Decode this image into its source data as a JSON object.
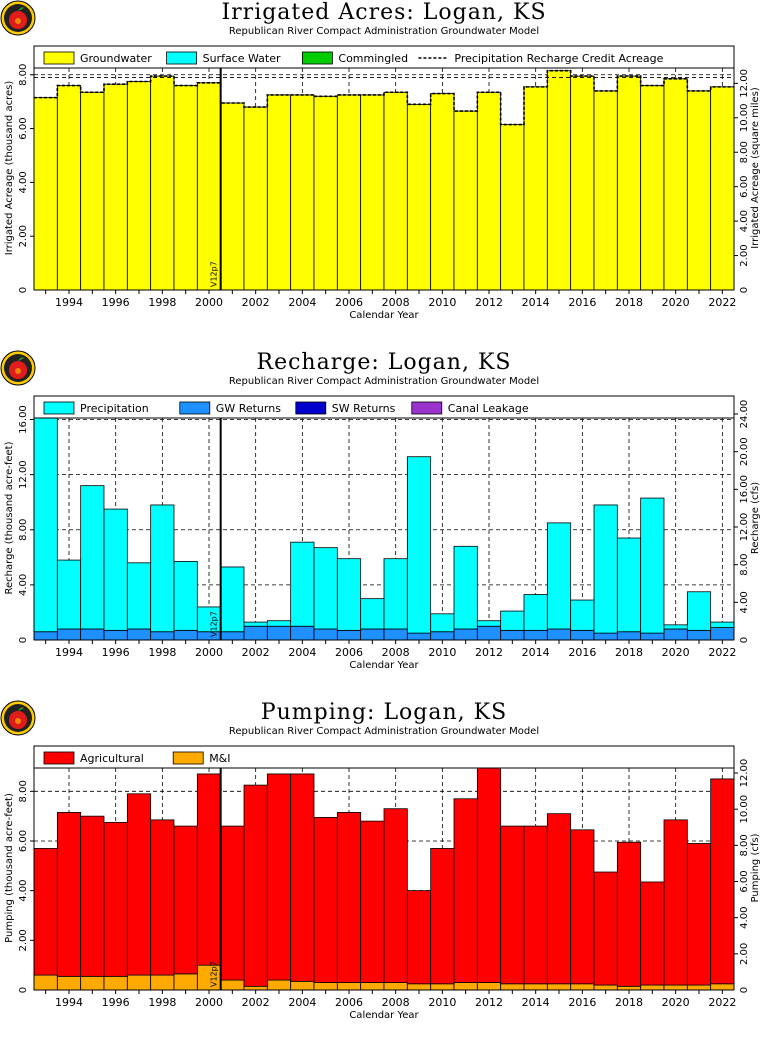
{
  "panels": [
    {
      "title": "Irrigated Acres: Logan, KS",
      "subtitle": "Republican River Compact Administration Groundwater Model",
      "ylabel": "Irrigated Acreage (thousand acres)",
      "y2label": "Irrigated Acreage (square miles)",
      "xlabel": "Calendar Year",
      "vline_label": "V12p7",
      "legend": [
        {
          "name": "Groundwater",
          "color": "#ffff00",
          "kind": "box"
        },
        {
          "name": "Surface Water",
          "color": "#00ffff",
          "kind": "box"
        },
        {
          "name": "Commingled",
          "color": "#00cc00",
          "kind": "box"
        },
        {
          "name": "Precipitation Recharge Credit Acreage",
          "color": "#000000",
          "kind": "dash"
        }
      ]
    },
    {
      "title": "Recharge: Logan, KS",
      "subtitle": "Republican River Compact Administration Groundwater Model",
      "ylabel": "Recharge (thousand acre-feet)",
      "y2label": "Recharge (cfs)",
      "xlabel": "Calendar Year",
      "vline_label": "V12p7",
      "legend": [
        {
          "name": "Precipitation",
          "color": "#00ffff",
          "kind": "box"
        },
        {
          "name": "GW Returns",
          "color": "#1e90ff",
          "kind": "box"
        },
        {
          "name": "SW Returns",
          "color": "#0000cc",
          "kind": "box"
        },
        {
          "name": "Canal Leakage",
          "color": "#9933cc",
          "kind": "box"
        }
      ]
    },
    {
      "title": "Pumping: Logan, KS",
      "subtitle": "Republican River Compact Administration Groundwater Model",
      "ylabel": "Pumping (thousand acre-feet)",
      "y2label": "Pumping (cfs)",
      "xlabel": "Calendar Year",
      "vline_label": "V12p7",
      "legend": [
        {
          "name": "Agricultural",
          "color": "#ff0000",
          "kind": "box"
        },
        {
          "name": "M&I",
          "color": "#ffaa00",
          "kind": "box"
        }
      ]
    }
  ],
  "chart_data": [
    {
      "type": "bar",
      "title": "Irrigated Acres: Logan, KS",
      "subtitle": "Republican River Compact Administration Groundwater Model",
      "xlabel": "Calendar Year",
      "ylabel": "Irrigated Acreage (thousand acres)",
      "y2label": "Irrigated Acreage (square miles)",
      "categories": [
        1993,
        1994,
        1995,
        1996,
        1997,
        1998,
        1999,
        2000,
        2001,
        2002,
        2003,
        2004,
        2005,
        2006,
        2007,
        2008,
        2009,
        2010,
        2011,
        2012,
        2013,
        2014,
        2015,
        2016,
        2017,
        2018,
        2019,
        2020,
        2021,
        2022
      ],
      "xticks": [
        1994,
        1996,
        1998,
        2000,
        2002,
        2004,
        2006,
        2008,
        2010,
        2012,
        2014,
        2016,
        2018,
        2020,
        2022
      ],
      "ylim": [
        0,
        8.4
      ],
      "yticks": [
        2,
        4,
        6,
        8
      ],
      "y2lim": [
        0,
        13.125
      ],
      "y2ticks": [
        2,
        4,
        6,
        8,
        10,
        12
      ],
      "stacked": true,
      "series": [
        {
          "name": "Groundwater",
          "color": "#ffff00",
          "values": [
            7.15,
            7.6,
            7.35,
            7.65,
            7.75,
            7.95,
            7.6,
            7.7,
            6.95,
            6.8,
            7.25,
            7.25,
            7.2,
            7.25,
            7.25,
            7.35,
            6.9,
            7.3,
            6.65,
            7.35,
            6.15,
            7.55,
            8.15,
            7.95,
            7.4,
            7.95,
            7.6,
            7.85,
            7.4,
            7.55
          ]
        },
        {
          "name": "Surface Water",
          "color": "#00ffff",
          "values": [
            0,
            0,
            0,
            0,
            0,
            0,
            0,
            0,
            0,
            0,
            0,
            0,
            0,
            0,
            0,
            0,
            0,
            0,
            0,
            0,
            0,
            0,
            0,
            0,
            0,
            0,
            0,
            0,
            0,
            0
          ]
        },
        {
          "name": "Commingled",
          "color": "#00cc00",
          "values": [
            0,
            0,
            0,
            0,
            0,
            0,
            0,
            0,
            0,
            0,
            0,
            0,
            0,
            0,
            0,
            0,
            0,
            0,
            0,
            0,
            0,
            0,
            0,
            0,
            0,
            0,
            0,
            0,
            0,
            0
          ]
        }
      ],
      "line": {
        "name": "Precipitation Recharge Credit Acreage",
        "values": [
          7.15,
          7.6,
          7.35,
          7.65,
          7.75,
          7.95,
          7.6,
          7.7,
          6.95,
          6.8,
          7.25,
          7.25,
          7.2,
          7.25,
          7.25,
          7.35,
          6.9,
          7.3,
          6.65,
          7.35,
          6.15,
          7.55,
          8.15,
          7.95,
          7.4,
          7.95,
          7.6,
          7.85,
          7.4,
          7.55
        ]
      },
      "hlines": [
        7.9
      ],
      "vline": {
        "x": 2000.5,
        "label": "V12p7"
      },
      "grid": true,
      "legend": "top"
    },
    {
      "type": "bar",
      "title": "Recharge: Logan, KS",
      "subtitle": "Republican River Compact Administration Groundwater Model",
      "xlabel": "Calendar Year",
      "ylabel": "Recharge (thousand acre-feet)",
      "y2label": "Recharge (cfs)",
      "categories": [
        1993,
        1994,
        1995,
        1996,
        1997,
        1998,
        1999,
        2000,
        2001,
        2002,
        2003,
        2004,
        2005,
        2006,
        2007,
        2008,
        2009,
        2010,
        2011,
        2012,
        2013,
        2014,
        2015,
        2016,
        2017,
        2018,
        2019,
        2020,
        2021,
        2022
      ],
      "xticks": [
        1994,
        1996,
        1998,
        2000,
        2002,
        2004,
        2006,
        2008,
        2010,
        2012,
        2014,
        2016,
        2018,
        2020,
        2022
      ],
      "ylim": [
        0,
        16.4
      ],
      "yticks": [
        4,
        8,
        12,
        16
      ],
      "y2lim": [
        0,
        24.0
      ],
      "y2ticks": [
        4,
        8,
        12,
        16,
        20,
        24
      ],
      "stacked": true,
      "series": [
        {
          "name": "GW Returns",
          "color": "#1e90ff",
          "values": [
            0.6,
            0.8,
            0.8,
            0.7,
            0.8,
            0.6,
            0.7,
            0.6,
            0.6,
            1.0,
            1.0,
            1.0,
            0.8,
            0.7,
            0.8,
            0.8,
            0.5,
            0.6,
            0.8,
            1.0,
            0.7,
            0.7,
            0.8,
            0.7,
            0.5,
            0.6,
            0.5,
            0.8,
            0.7,
            0.9
          ]
        },
        {
          "name": "Precipitation",
          "color": "#00ffff",
          "values": [
            15.8,
            5.0,
            10.4,
            8.8,
            4.8,
            9.2,
            5.0,
            1.8,
            4.7,
            0.3,
            0.4,
            6.1,
            5.9,
            5.2,
            2.2,
            5.1,
            12.8,
            1.3,
            6.0,
            0.4,
            1.4,
            2.6,
            7.7,
            2.2,
            9.3,
            6.8,
            9.8,
            0.3,
            2.8,
            0.4
          ]
        },
        {
          "name": "SW Returns",
          "color": "#0000cc",
          "values": [
            0,
            0,
            0,
            0,
            0,
            0,
            0,
            0,
            0,
            0,
            0,
            0,
            0,
            0,
            0,
            0,
            0,
            0,
            0,
            0,
            0,
            0,
            0,
            0,
            0,
            0,
            0,
            0,
            0,
            0
          ]
        },
        {
          "name": "Canal Leakage",
          "color": "#9933cc",
          "values": [
            0,
            0,
            0,
            0,
            0,
            0,
            0,
            0,
            0,
            0,
            0,
            0,
            0,
            0,
            0,
            0,
            0,
            0,
            0,
            0,
            0,
            0,
            0,
            0,
            0,
            0,
            0,
            0,
            0,
            0
          ]
        }
      ],
      "vline": {
        "x": 2000.5,
        "label": "V12p7"
      },
      "grid": true,
      "legend": "top"
    },
    {
      "type": "bar",
      "title": "Pumping: Logan, KS",
      "subtitle": "Republican River Compact Administration Groundwater Model",
      "xlabel": "Calendar Year",
      "ylabel": "Pumping (thousand acre-feet)",
      "y2label": "Pumping (cfs)",
      "categories": [
        1993,
        1994,
        1995,
        1996,
        1997,
        1998,
        1999,
        2000,
        2001,
        2002,
        2003,
        2004,
        2005,
        2006,
        2007,
        2008,
        2009,
        2010,
        2011,
        2012,
        2013,
        2014,
        2015,
        2016,
        2017,
        2018,
        2019,
        2020,
        2021,
        2022
      ],
      "xticks": [
        1994,
        1996,
        1998,
        2000,
        2002,
        2004,
        2006,
        2008,
        2010,
        2012,
        2014,
        2016,
        2018,
        2020,
        2022
      ],
      "ylim": [
        0,
        9.1
      ],
      "yticks": [
        2,
        4,
        6,
        8
      ],
      "y2lim": [
        0,
        12.5
      ],
      "y2ticks": [
        2,
        4,
        6,
        8,
        10,
        12
      ],
      "stacked": true,
      "series": [
        {
          "name": "M&I",
          "color": "#ffaa00",
          "values": [
            0.6,
            0.55,
            0.55,
            0.55,
            0.6,
            0.6,
            0.65,
            1.0,
            0.4,
            0.15,
            0.4,
            0.35,
            0.3,
            0.3,
            0.3,
            0.3,
            0.25,
            0.25,
            0.3,
            0.3,
            0.25,
            0.25,
            0.25,
            0.25,
            0.2,
            0.15,
            0.2,
            0.2,
            0.2,
            0.25
          ]
        },
        {
          "name": "Agricultural",
          "color": "#ff0000",
          "values": [
            5.1,
            6.6,
            6.45,
            6.2,
            7.3,
            6.25,
            5.95,
            7.7,
            6.2,
            8.1,
            8.3,
            8.35,
            6.65,
            6.85,
            6.5,
            7.0,
            3.75,
            5.45,
            7.4,
            8.8,
            6.35,
            6.35,
            6.85,
            6.2,
            4.55,
            5.8,
            4.15,
            6.65,
            5.7,
            8.25
          ]
        }
      ],
      "vline": {
        "x": 2000.5,
        "label": "V12p7"
      },
      "grid": true,
      "legend": "top"
    }
  ]
}
